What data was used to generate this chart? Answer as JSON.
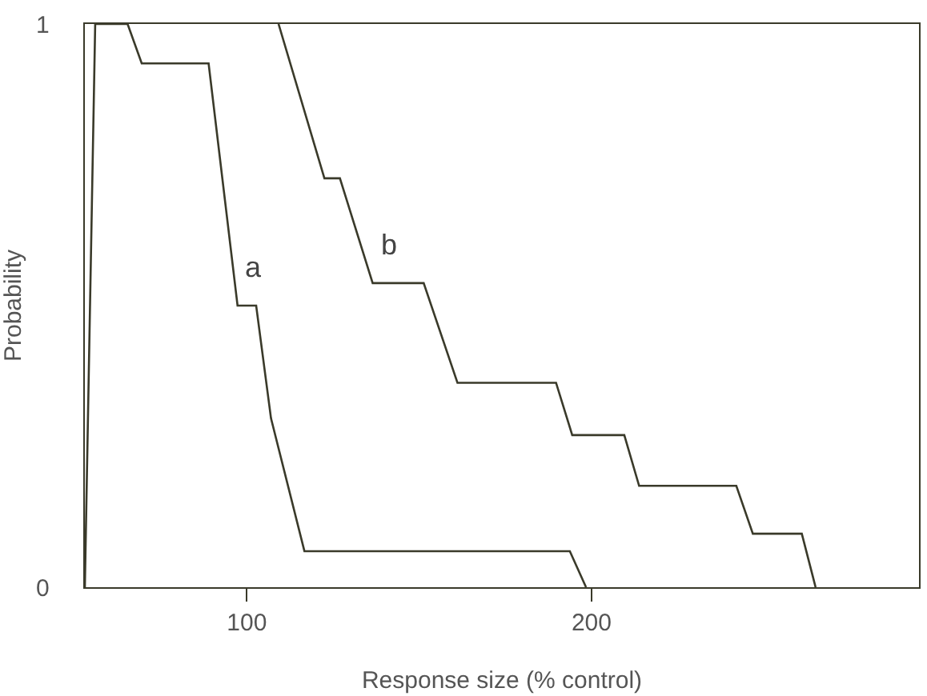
{
  "chart_data": {
    "type": "line",
    "xlabel": "Response size (% control)",
    "ylabel": "Probability",
    "xlim": [
      53,
      295
    ],
    "ylim": [
      0,
      1
    ],
    "xticks": [
      100,
      200
    ],
    "yticks": [
      0,
      1
    ],
    "marker": "none",
    "line_style": "solid",
    "series": [
      {
        "color": "#3a3a2a",
        "x": [
          53,
          56,
          65.4,
          69.5,
          88.9,
          97.3,
          102.7,
          107,
          116.7,
          193.7,
          198.4
        ],
        "values": [
          0,
          1,
          1,
          0.93,
          0.93,
          0.5,
          0.5,
          0.3,
          0.064,
          0.064,
          0
        ]
      },
      {
        "color": "#3a3a2a",
        "x": [
          109.2,
          122.5,
          127,
          136.5,
          151.3,
          161.1,
          189.7,
          194.4,
          209.5,
          213.8,
          242,
          246.8,
          261,
          265
        ],
        "values": [
          1,
          0.726,
          0.726,
          0.54,
          0.54,
          0.363,
          0.363,
          0.27,
          0.27,
          0.18,
          0.18,
          0.095,
          0.095,
          0
        ]
      }
    ],
    "annotations": [
      {
        "text": "a",
        "x": 97.3,
        "y": 0.5
      },
      {
        "text": "b",
        "x": 136.5,
        "y": 0.54
      }
    ]
  }
}
